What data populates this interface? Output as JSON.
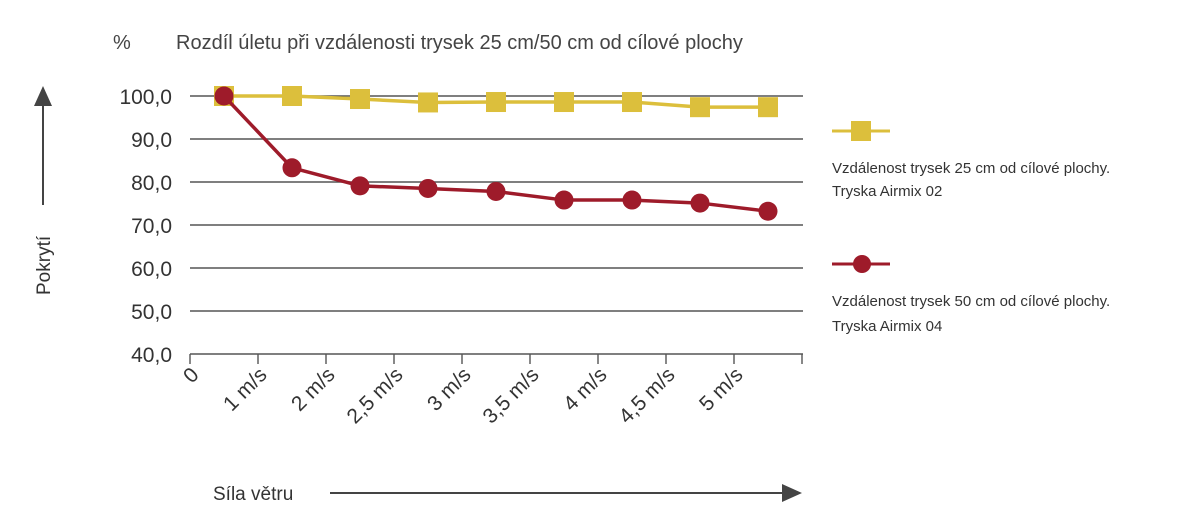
{
  "chart_data": {
    "type": "line",
    "unit": "%",
    "title": "Rozdíl úletu při vzdálenosti trysek 25 cm/50 cm od cílové plochy",
    "ylabel": "Pokrytí",
    "xlabel": "Síla větru",
    "ylim": [
      40,
      100
    ],
    "y_ticks": [
      "40,0",
      "50,0",
      "60,0",
      "70,0",
      "80,0",
      "90,0",
      "100,0"
    ],
    "y_tick_values": [
      40,
      50,
      60,
      70,
      80,
      90,
      100
    ],
    "categories": [
      "0",
      "1 m/s",
      "2 m/s",
      "2,5 m/s",
      "3 m/s",
      "3,5 m/s",
      "4 m/s",
      "4,5 m/s",
      "5 m/s"
    ],
    "x": [
      0.5,
      1.5,
      2.5,
      3.5,
      4.5,
      5.5,
      6.5,
      7.5,
      8.5
    ],
    "grid": true,
    "legend_position": "right",
    "series": [
      {
        "legend_line1": "Vzdálenost trysek 25 cm od cílové plochy.",
        "legend_line2": "Tryska Airmix 02",
        "marker": "square",
        "color": "#dcbf3c",
        "values": [
          100,
          100,
          99.3,
          98.5,
          98.6,
          98.6,
          98.6,
          97.4,
          97.4
        ]
      },
      {
        "legend_line1": "Vzdálenost trysek 50 cm od cílové plochy.",
        "legend_line2": "Tryska Airmix 04",
        "marker": "circle",
        "color": "#9e1b2a",
        "values": [
          100,
          83.3,
          79.1,
          78.5,
          77.8,
          75.8,
          75.8,
          75.1,
          73.2
        ]
      }
    ]
  }
}
